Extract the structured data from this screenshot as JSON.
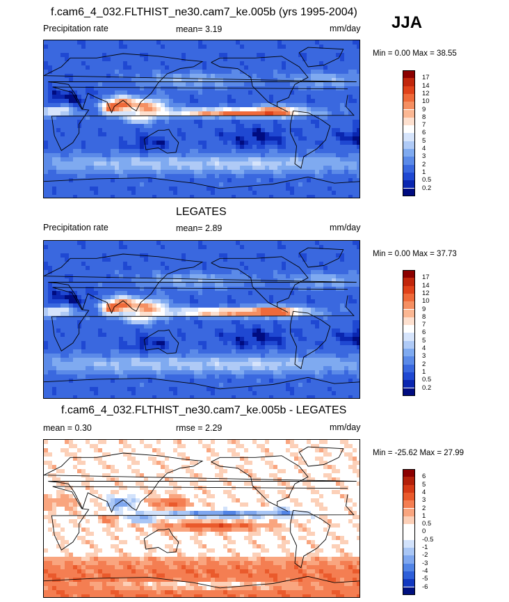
{
  "season": "JJA",
  "panels": [
    {
      "title": "f.cam6_4_032.FLTHIST_ne30.cam7_ke.005b (yrs 1995-2004)",
      "left_label": "Precipitation rate",
      "center_label": "mean=   3.19",
      "units": "mm/day",
      "minmax": "Min =    0.00 Max =  38.55",
      "field": "model"
    },
    {
      "title": "LEGATES",
      "left_label": "Precipitation rate",
      "center_label": "mean=   2.89",
      "units": "mm/day",
      "minmax": "Min =    0.00 Max =  37.73",
      "field": "obs"
    },
    {
      "title": "f.cam6_4_032.FLTHIST_ne30.cam7_ke.005b - LEGATES",
      "left_label": "mean =   0.30",
      "center_label": "rmse =   2.29",
      "units": "mm/day",
      "minmax": "Min = -25.62 Max =  27.99",
      "field": "diff"
    }
  ],
  "colorbar_precip": {
    "labels": [
      "17",
      "14",
      "12",
      "10",
      "9",
      "8",
      "7",
      "6",
      "5",
      "4",
      "3",
      "2",
      "1",
      "0.5",
      "0.2"
    ],
    "colors": [
      "#8b0000",
      "#c1260c",
      "#e0421a",
      "#ef6a3a",
      "#f58f62",
      "#fbb793",
      "#fde0cf",
      "#ffffff",
      "#d6e4fb",
      "#afcaf6",
      "#7faaf0",
      "#5b8ae8",
      "#3a68df",
      "#1f48d2",
      "#0a26b0",
      "#000c80"
    ]
  },
  "colorbar_diff": {
    "labels": [
      "6",
      "5",
      "4",
      "3",
      "2",
      "1",
      "0.5",
      "0",
      "-0.5",
      "-1",
      "-2",
      "-3",
      "-4",
      "-5",
      "-6"
    ],
    "colors": [
      "#8b0000",
      "#b3200a",
      "#d63a16",
      "#ea5a2c",
      "#f47e52",
      "#f9a57f",
      "#fcd0b8",
      "#ffffff",
      "#ffffff",
      "#d2e2fb",
      "#a9c6f5",
      "#7fa7ef",
      "#5284e6",
      "#2e5fd9",
      "#1238c0",
      "#00107f"
    ]
  }
}
